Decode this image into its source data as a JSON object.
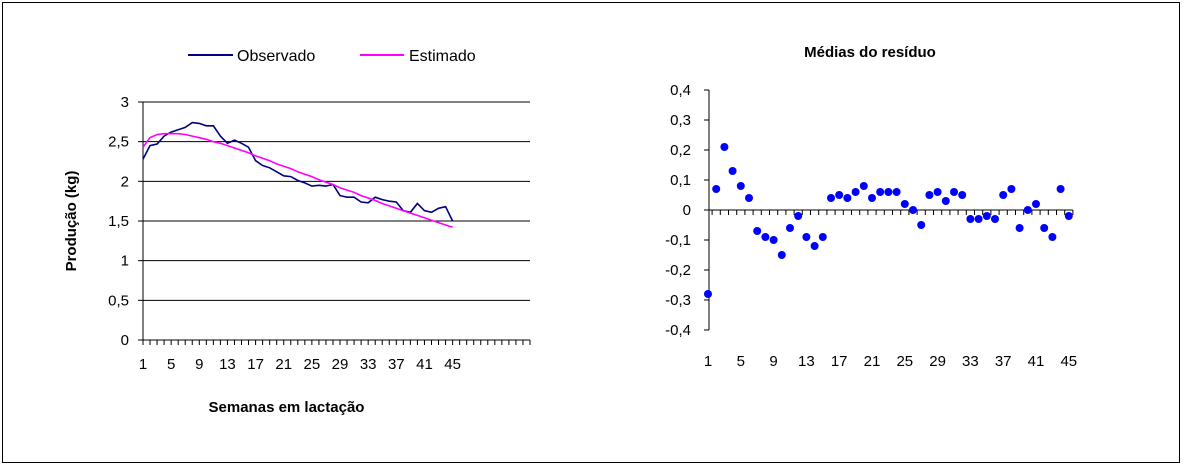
{
  "chart_data": [
    {
      "type": "line",
      "title": "",
      "xlabel": "Semanas em lactação",
      "ylabel": "Produção (kg)",
      "ylim": [
        0,
        3
      ],
      "yticks": [
        "0",
        "0,5",
        "1",
        "1,5",
        "2",
        "2,5",
        "3"
      ],
      "xlim": [
        1,
        56
      ],
      "xticks": [
        "1",
        "5",
        "9",
        "13",
        "17",
        "21",
        "25",
        "29",
        "33",
        "37",
        "41",
        "45"
      ],
      "grid": "horizontal",
      "legend": "top",
      "series": [
        {
          "name": "Observado",
          "color": "#000080",
          "x": [
            1,
            2,
            3,
            4,
            5,
            6,
            7,
            8,
            9,
            10,
            11,
            12,
            13,
            14,
            15,
            16,
            17,
            18,
            19,
            20,
            21,
            22,
            23,
            24,
            25,
            26,
            27,
            28,
            29,
            30,
            31,
            32,
            33,
            34,
            35,
            36,
            37,
            38,
            39,
            40,
            41,
            42,
            43,
            44,
            45
          ],
          "values": [
            2.28,
            2.45,
            2.47,
            2.57,
            2.62,
            2.65,
            2.68,
            2.74,
            2.73,
            2.7,
            2.7,
            2.57,
            2.48,
            2.52,
            2.48,
            2.43,
            2.26,
            2.2,
            2.17,
            2.12,
            2.07,
            2.06,
            2.01,
            1.98,
            1.94,
            1.95,
            1.94,
            1.96,
            1.82,
            1.8,
            1.8,
            1.74,
            1.73,
            1.8,
            1.77,
            1.75,
            1.74,
            1.63,
            1.61,
            1.72,
            1.63,
            1.61,
            1.66,
            1.68,
            1.5
          ]
        },
        {
          "name": "Estimado",
          "color": "#ff00ff",
          "x": [
            1,
            2,
            3,
            4,
            5,
            6,
            7,
            8,
            9,
            10,
            11,
            12,
            13,
            14,
            15,
            16,
            17,
            18,
            19,
            20,
            21,
            22,
            23,
            24,
            25,
            26,
            27,
            28,
            29,
            30,
            31,
            32,
            33,
            34,
            35,
            36,
            37,
            38,
            39,
            40,
            41,
            42,
            43,
            44,
            45
          ],
          "values": [
            2.43,
            2.55,
            2.59,
            2.6,
            2.6,
            2.6,
            2.59,
            2.57,
            2.55,
            2.53,
            2.5,
            2.48,
            2.45,
            2.42,
            2.39,
            2.36,
            2.32,
            2.29,
            2.26,
            2.22,
            2.19,
            2.16,
            2.12,
            2.09,
            2.06,
            2.02,
            1.99,
            1.96,
            1.92,
            1.89,
            1.86,
            1.82,
            1.79,
            1.76,
            1.72,
            1.69,
            1.66,
            1.63,
            1.6,
            1.57,
            1.54,
            1.51,
            1.48,
            1.45,
            1.42
          ]
        }
      ]
    },
    {
      "type": "scatter",
      "title": "Médias do resíduo",
      "xlabel": "",
      "ylabel": "",
      "ylim": [
        -0.4,
        0.4
      ],
      "yticks": [
        "0,4",
        "0,3",
        "0,2",
        "0,1",
        "0",
        "-0,1",
        "-0,2",
        "-0,3",
        "-0,4"
      ],
      "xticks": [
        "1",
        "5",
        "9",
        "13",
        "17",
        "21",
        "25",
        "29",
        "33",
        "37",
        "41",
        "45"
      ],
      "grid": "none",
      "series": [
        {
          "color": "#0000ff",
          "x": [
            1,
            2,
            3,
            4,
            5,
            6,
            7,
            8,
            9,
            10,
            11,
            12,
            13,
            14,
            15,
            16,
            17,
            18,
            19,
            20,
            21,
            22,
            23,
            24,
            25,
            26,
            27,
            28,
            29,
            30,
            31,
            32,
            33,
            34,
            35,
            36,
            37,
            38,
            39,
            40,
            41,
            42,
            43,
            44,
            45
          ],
          "values": [
            -0.28,
            0.07,
            0.21,
            0.13,
            0.08,
            0.04,
            -0.07,
            -0.09,
            -0.1,
            -0.15,
            -0.06,
            -0.02,
            -0.09,
            -0.12,
            -0.09,
            0.04,
            0.05,
            0.04,
            0.06,
            0.08,
            0.04,
            0.06,
            0.06,
            0.06,
            0.02,
            0.0,
            -0.05,
            0.05,
            0.06,
            0.03,
            0.06,
            0.05,
            -0.03,
            -0.03,
            -0.02,
            -0.03,
            0.05,
            0.07,
            -0.06,
            0.0,
            0.02,
            -0.06,
            -0.09,
            0.07,
            -0.02
          ]
        }
      ]
    }
  ]
}
